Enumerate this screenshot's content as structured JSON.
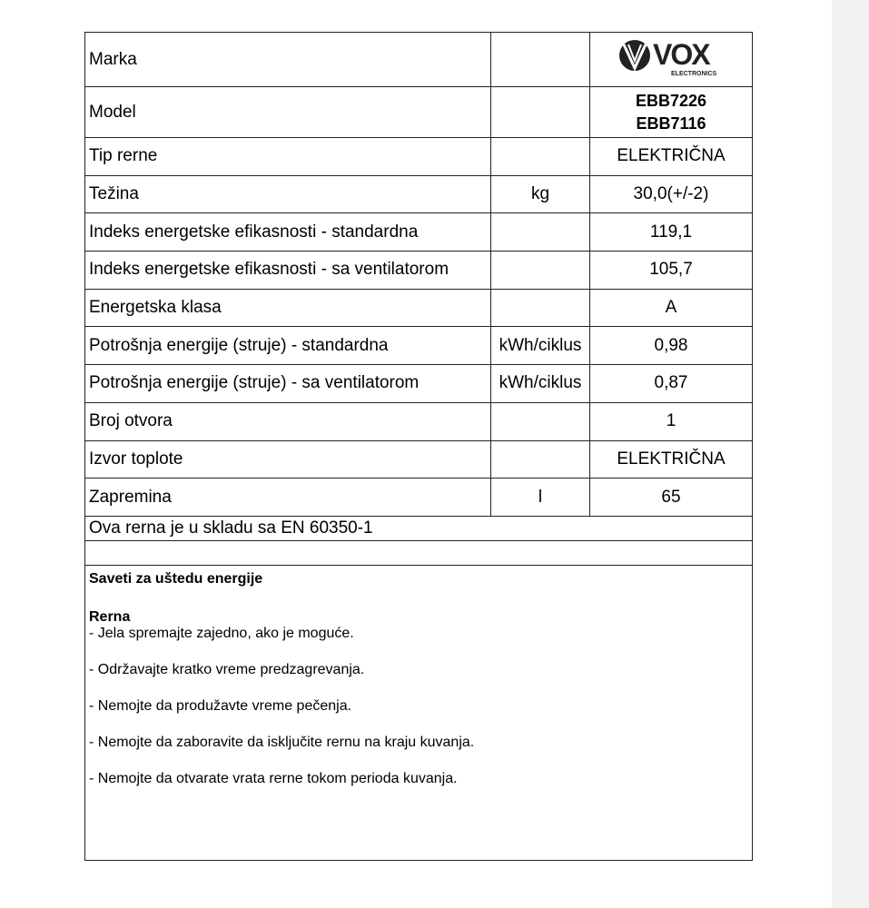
{
  "brand": {
    "logo_text": "VOX",
    "logo_sub": "ELECTRONICS"
  },
  "rows": [
    {
      "label": "Marka",
      "unit": "",
      "value": ""
    },
    {
      "label": "Model",
      "unit": "",
      "value": "EBB7226",
      "value2": "EBB7116"
    },
    {
      "label": "Tip rerne",
      "unit": "",
      "value": "ELEKTRIČNA"
    },
    {
      "label": "Težina",
      "unit": "kg",
      "value": "30,0(+/-2)"
    },
    {
      "label": "Indeks energetske efikasnosti - standardna",
      "unit": "",
      "value": "119,1"
    },
    {
      "label": "Indeks energetske efikasnosti - sa ventilatorom",
      "unit": "",
      "value": "105,7"
    },
    {
      "label": "Energetska klasa",
      "unit": "",
      "value": "A"
    },
    {
      "label": "Potrošnja energije (struje) - standardna",
      "unit": "kWh/ciklus",
      "value": "0,98"
    },
    {
      "label": "Potrošnja energije (struje) - sa ventilatorom",
      "unit": "kWh/ciklus",
      "value": "0,87"
    },
    {
      "label": "Broj otvora",
      "unit": "",
      "value": "1"
    },
    {
      "label": "Izvor toplote",
      "unit": "",
      "value": "ELEKTRIČNA"
    },
    {
      "label": "Zapremina",
      "unit": "l",
      "value": "65"
    }
  ],
  "compliance": "Ova rerna je u skladu sa EN 60350-1",
  "tips": {
    "title": "Saveti za uštedu energije",
    "subtitle": "Rerna",
    "items": [
      "- Jela spremajte zajedno, ako je moguće.",
      "- Održavajte kratko vreme predzagrevanja.",
      "- Nemojte da produžavte vreme pečenja.",
      "- Nemojte da zaboravite da isključite rernu na kraju kuvanja.",
      "- Nemojte da otvarate vrata rerne tokom perioda kuvanja."
    ]
  }
}
